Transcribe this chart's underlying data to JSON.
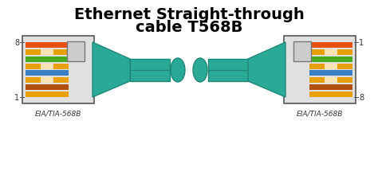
{
  "title_line1": "Ethernet Straight-through",
  "title_line2": "cable T568B",
  "bg_color": "#ffffff",
  "connector_border": "#555555",
  "connector_fill": "#e8e8e8",
  "cable_color": "#2aaa96",
  "label_color": "#333333",
  "wire_colors_left": [
    "#e8a000",
    "#b05010",
    "#e8a000",
    "#3a7fc1",
    "#e8a000",
    "#4aaa20",
    "#e8a000",
    "#e85010"
  ],
  "wire_stripe_left": [
    false,
    false,
    true,
    false,
    true,
    false,
    true,
    false
  ],
  "wire_colors_right": [
    "#e85010",
    "#e8a000",
    "#4aaa20",
    "#e8a000",
    "#3a7fc1",
    "#e8a000",
    "#b05010",
    "#e8a000"
  ],
  "wire_stripe_right": [
    false,
    true,
    false,
    true,
    false,
    true,
    false,
    false
  ],
  "label_left": "EIA/TIA-568B",
  "label_right": "EIA/TIA-568B"
}
